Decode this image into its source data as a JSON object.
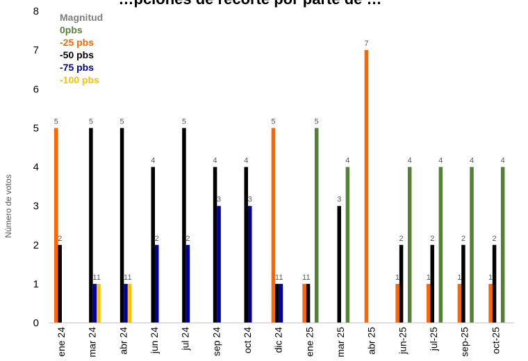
{
  "chart_data": {
    "type": "bar",
    "title": "…pciones de recorte por parte de …",
    "ylabel": "Número de votos",
    "xlabel": "",
    "ylim": [
      0,
      8
    ],
    "yticks": [
      0,
      1,
      2,
      3,
      4,
      5,
      6,
      7,
      8
    ],
    "grid": false,
    "legend_placement": "top-left",
    "categories": [
      "ene 24",
      "mar 24",
      "abr 24",
      "jun 24",
      "jul 24",
      "sep 24",
      "oct 24",
      "dic 24",
      "ene 25",
      "mar 25",
      "abr 25",
      "jun-25",
      "jul-25",
      "sep-25",
      "oct-25"
    ],
    "legend_title": "Magnitud",
    "series": [
      {
        "name": "0pbs",
        "color": "#548235",
        "values": [
          null,
          null,
          null,
          null,
          null,
          null,
          null,
          null,
          5,
          4,
          null,
          4,
          4,
          4,
          4
        ]
      },
      {
        "name": "-25 pbs",
        "color": "#FF6600",
        "values": [
          5,
          null,
          null,
          null,
          null,
          null,
          null,
          5,
          1,
          null,
          7,
          1,
          1,
          1,
          1
        ]
      },
      {
        "name": "-50 pbs",
        "color": "#000000",
        "values": [
          2,
          5,
          5,
          4,
          5,
          4,
          4,
          1,
          1,
          3,
          null,
          2,
          2,
          2,
          2
        ]
      },
      {
        "name": "-75 pbs",
        "color": "#0000A0",
        "values": [
          null,
          1,
          1,
          2,
          2,
          3,
          3,
          1,
          null,
          null,
          null,
          null,
          null,
          null,
          null
        ]
      },
      {
        "name": "-100 pbs",
        "color": "#FFC000",
        "values": [
          null,
          1,
          1,
          null,
          null,
          null,
          null,
          null,
          null,
          null,
          null,
          null,
          null,
          null,
          null
        ]
      }
    ],
    "legend_title_color": "#7F7F7F"
  }
}
